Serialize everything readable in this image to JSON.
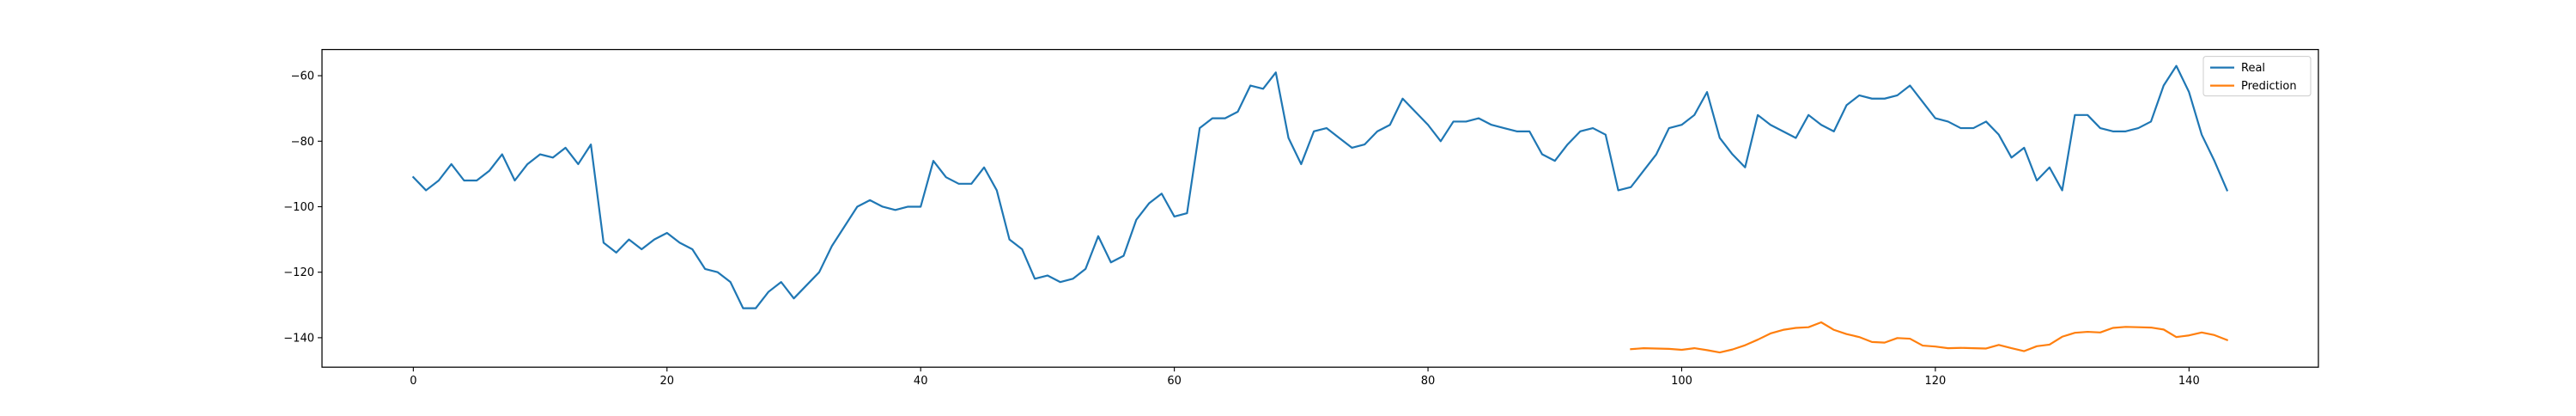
{
  "chart_data": {
    "type": "line",
    "title": "",
    "xlabel": "",
    "ylabel": "",
    "xlim": [
      -7.2,
      150.2
    ],
    "ylim": [
      -149,
      -52
    ],
    "xticks": [
      0,
      20,
      40,
      60,
      80,
      100,
      120,
      140
    ],
    "yticks": [
      -140,
      -120,
      -100,
      -80,
      -60
    ],
    "xtick_labels": [
      "0",
      "20",
      "40",
      "60",
      "80",
      "100",
      "120",
      "140"
    ],
    "ytick_labels": [
      "−140",
      "−120",
      "−100",
      "−80",
      "−60"
    ],
    "grid": false,
    "legend_position": "top-right",
    "series": [
      {
        "name": "Real",
        "color": "#1f77b4",
        "x": [
          0,
          1,
          2,
          3,
          4,
          5,
          6,
          7,
          8,
          9,
          10,
          11,
          12,
          13,
          14,
          15,
          16,
          17,
          18,
          19,
          20,
          21,
          22,
          23,
          24,
          25,
          26,
          27,
          28,
          29,
          30,
          31,
          32,
          33,
          34,
          35,
          36,
          37,
          38,
          39,
          40,
          41,
          42,
          43,
          44,
          45,
          46,
          47,
          48,
          49,
          50,
          51,
          52,
          53,
          54,
          55,
          56,
          57,
          58,
          59,
          60,
          61,
          62,
          63,
          64,
          65,
          66,
          67,
          68,
          69,
          70,
          71,
          72,
          73,
          74,
          75,
          76,
          77,
          78,
          79,
          80,
          81,
          82,
          83,
          84,
          85,
          86,
          87,
          88,
          89,
          90,
          91,
          92,
          93,
          94,
          95,
          96,
          97,
          98,
          99,
          100,
          101,
          102,
          103,
          104,
          105,
          106,
          107,
          108,
          109,
          110,
          111,
          112,
          113,
          114,
          115,
          116,
          117,
          118,
          119,
          120,
          121,
          122,
          123,
          124,
          125,
          126,
          127,
          128,
          129,
          130,
          131,
          132,
          133,
          134,
          135,
          136,
          137,
          138,
          139,
          140,
          141,
          142,
          143
        ],
        "values": [
          -91,
          -95,
          -92,
          -87,
          -92,
          -92,
          -89,
          -84,
          -92,
          -87,
          -84,
          -85,
          -82,
          -87,
          -81,
          -111,
          -114,
          -110,
          -113,
          -110,
          -108,
          -111,
          -113,
          -119,
          -120,
          -123,
          -131,
          -131,
          -126,
          -123,
          -128,
          -124,
          -120,
          -112,
          -106,
          -100,
          -98,
          -100,
          -101,
          -100,
          -100,
          -86,
          -91,
          -93,
          -93,
          -88,
          -95,
          -110,
          -113,
          -122,
          -121,
          -123,
          -122,
          -119,
          -109,
          -117,
          -115,
          -104,
          -99,
          -96,
          -103,
          -102,
          -76,
          -73,
          -73,
          -71,
          -63,
          -64,
          -59,
          -79,
          -87,
          -77,
          -76,
          -79,
          -82,
          -81,
          -77,
          -75,
          -67,
          -71,
          -75,
          -80,
          -74,
          -74,
          -73,
          -75,
          -76,
          -77,
          -77,
          -84,
          -86,
          -81,
          -77,
          -76,
          -78,
          -95,
          -94,
          -89,
          -84,
          -76,
          -75,
          -72,
          -65,
          -79,
          -84,
          -88,
          -72,
          -75,
          -77,
          -79,
          -72,
          -75,
          -77,
          -69,
          -66,
          -67,
          -67,
          -66,
          -63,
          -68,
          -73,
          -74,
          -76,
          -76,
          -74,
          -78,
          -85,
          -82,
          -92,
          -88,
          -95,
          -72,
          -72,
          -76,
          -77,
          -77,
          -76,
          -74,
          -63,
          -57,
          -65,
          -78,
          -86,
          -95
        ]
      },
      {
        "name": "Prediction",
        "color": "#ff7f0e",
        "x": [
          96,
          97,
          98,
          99,
          100,
          101,
          102,
          103,
          104,
          105,
          106,
          107,
          108,
          109,
          110,
          111,
          112,
          113,
          114,
          115,
          116,
          117,
          118,
          119,
          120,
          121,
          122,
          123,
          124,
          125,
          126,
          127,
          128,
          129,
          130,
          131,
          132,
          133,
          134,
          135,
          136,
          137,
          138,
          139,
          140,
          141,
          142,
          143
        ],
        "values": [
          -143.5,
          -143.2,
          -143.3,
          -143.4,
          -143.7,
          -143.2,
          -143.8,
          -144.5,
          -143.6,
          -142.3,
          -140.6,
          -138.7,
          -137.6,
          -137.0,
          -136.8,
          -135.3,
          -137.6,
          -138.9,
          -139.8,
          -141.3,
          -141.5,
          -140.1,
          -140.3,
          -142.4,
          -142.7,
          -143.2,
          -143.1,
          -143.2,
          -143.3,
          -142.2,
          -143.2,
          -144.1,
          -142.6,
          -142.1,
          -139.7,
          -138.5,
          -138.2,
          -138.4,
          -137.0,
          -136.7,
          -136.8,
          -136.9,
          -137.5,
          -139.8,
          -139.3,
          -138.4,
          -139.2,
          -140.7
        ]
      }
    ]
  }
}
